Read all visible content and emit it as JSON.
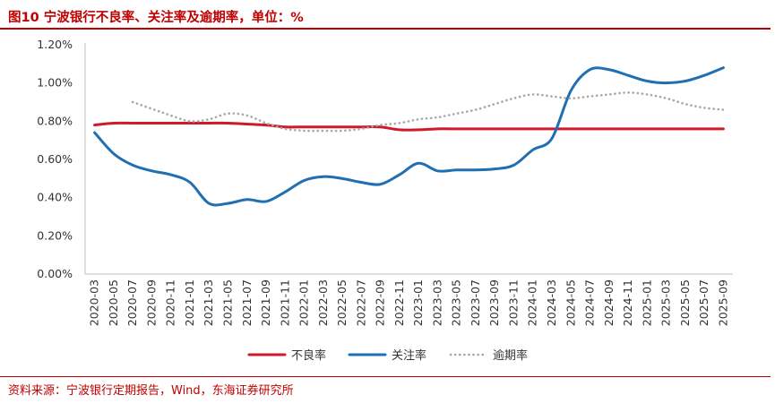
{
  "header": {
    "title": "图10  宁波银行不良率、关注率及逾期率，单位：%"
  },
  "footer": {
    "source": "资料来源：宁波银行定期报告，Wind，东海证券研究所"
  },
  "colors": {
    "npl": "#d0192b",
    "attention": "#1f6fb2",
    "overdue": "#a6a6a6",
    "accent": "#c00000"
  },
  "chart_data": {
    "type": "line",
    "title": "宁波银行不良率、关注率及逾期率，单位：%",
    "ylim": [
      0,
      1.2
    ],
    "yticks": [
      "0.00%",
      "0.20%",
      "0.40%",
      "0.60%",
      "0.80%",
      "1.00%",
      "1.20%"
    ],
    "x": [
      "2020-03",
      "2020-05",
      "2020-07",
      "2020-09",
      "2020-11",
      "2021-01",
      "2021-03",
      "2021-05",
      "2021-07",
      "2021-09",
      "2021-11",
      "2022-01",
      "2022-03",
      "2022-05",
      "2022-07",
      "2022-09",
      "2022-11",
      "2023-01",
      "2023-03",
      "2023-05",
      "2023-07",
      "2023-09",
      "2023-11",
      "2024-01",
      "2024-03",
      "2024-05",
      "2024-07",
      "2024-09",
      "2024-11",
      "2025-01",
      "2025-03",
      "2025-05",
      "2025-07",
      "2025-09"
    ],
    "series": [
      {
        "name": "不良率",
        "style": "solid",
        "values": [
          0.78,
          0.79,
          0.79,
          0.79,
          0.79,
          0.79,
          0.79,
          0.79,
          0.785,
          0.78,
          0.77,
          0.77,
          0.77,
          0.77,
          0.77,
          0.77,
          0.755,
          0.755,
          0.76,
          0.76,
          0.76,
          0.76,
          0.76,
          0.76,
          0.76,
          0.76,
          0.76,
          0.76,
          0.76,
          0.76,
          0.76,
          0.76,
          0.76,
          0.76
        ]
      },
      {
        "name": "关注率",
        "style": "solid",
        "values": [
          0.74,
          0.63,
          0.57,
          0.54,
          0.52,
          0.48,
          0.37,
          0.37,
          0.39,
          0.38,
          0.43,
          0.49,
          0.51,
          0.5,
          0.48,
          0.47,
          0.52,
          0.58,
          0.54,
          0.545,
          0.545,
          0.55,
          0.57,
          0.65,
          0.71,
          0.96,
          1.07,
          1.07,
          1.04,
          1.01,
          1.0,
          1.01,
          1.04,
          1.08
        ]
      },
      {
        "name": "逾期率",
        "style": "dotted",
        "values": [
          null,
          null,
          0.9,
          null,
          0.83,
          0.8,
          0.81,
          0.84,
          0.83,
          0.79,
          0.76,
          0.75,
          0.75,
          0.75,
          0.76,
          0.78,
          0.79,
          0.81,
          0.82,
          0.84,
          0.86,
          0.89,
          0.92,
          0.94,
          0.93,
          0.92,
          0.93,
          0.94,
          0.95,
          0.94,
          0.92,
          0.89,
          0.87,
          0.86
        ]
      }
    ],
    "legend": [
      "不良率",
      "关注率",
      "逾期率"
    ],
    "legend_position": "bottom"
  }
}
